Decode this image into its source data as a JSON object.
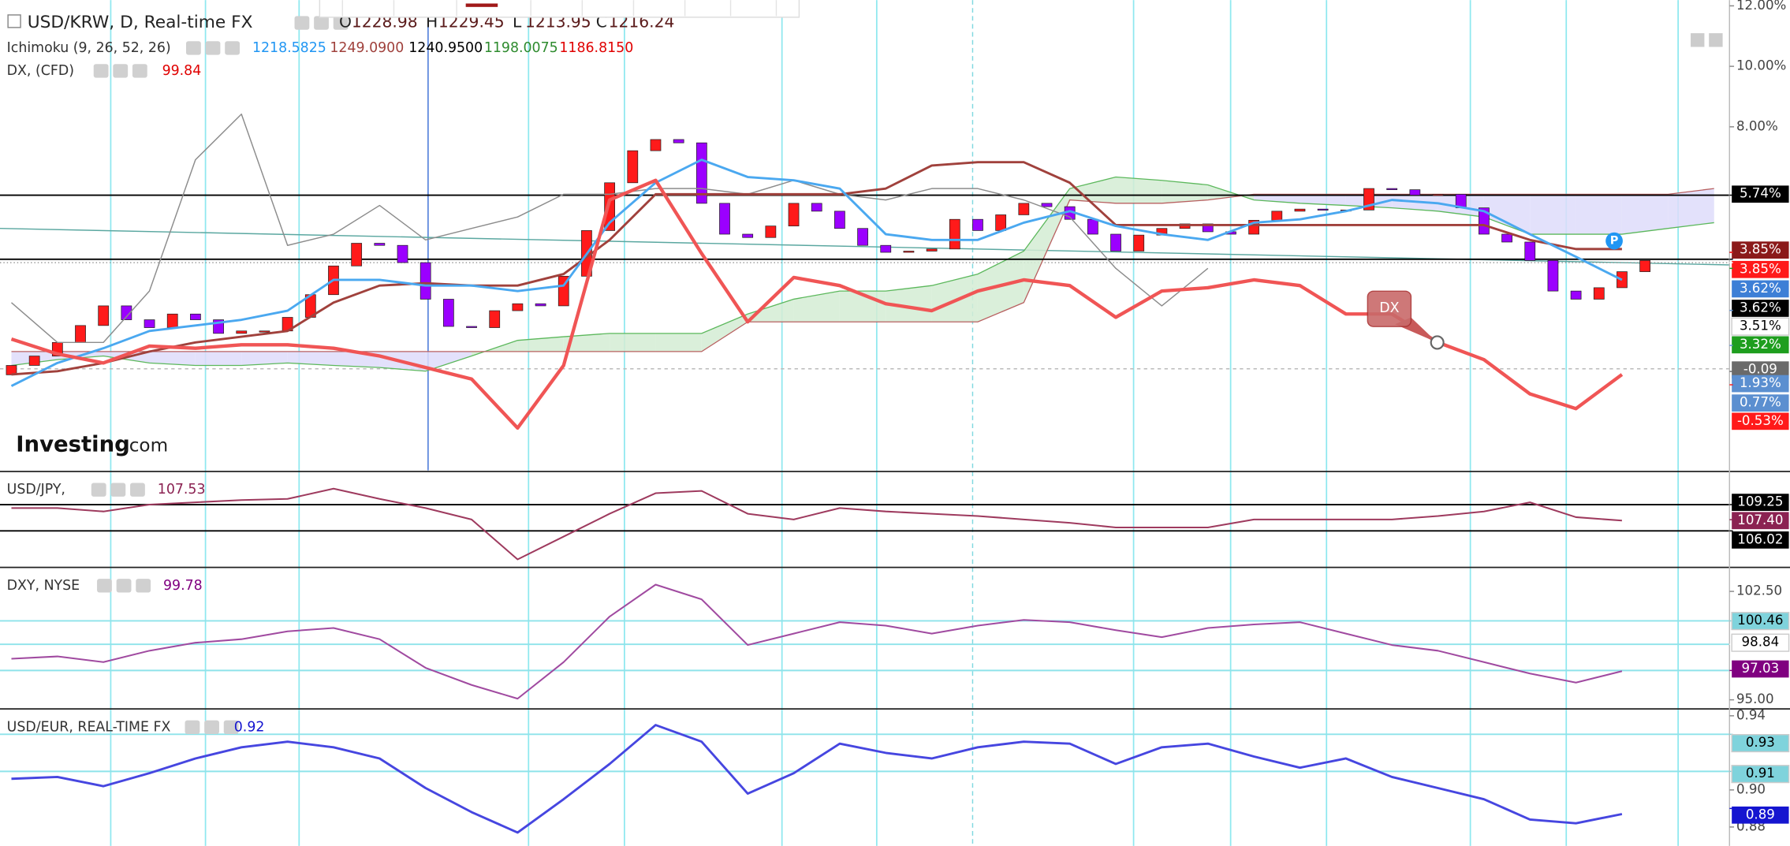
{
  "chart_data": [
    {
      "type": "candlestick",
      "title": "USD/KRW, D, Real-time FX",
      "ohlc": [
        {
          "key": "O",
          "value": 1228.98
        },
        {
          "key": "H",
          "value": 1229.45
        },
        {
          "key": "L",
          "value": 1213.95
        },
        {
          "key": "C",
          "value": 1216.24
        }
      ],
      "indicators": [
        {
          "name": "Ichimoku (9, 26, 52, 26)",
          "values": [
            {
              "value": "1218.5825",
              "color": "#2196f3"
            },
            {
              "value": "1249.0900",
              "color": "#a0413c"
            },
            {
              "value": "1240.9500",
              "color": "#000000"
            },
            {
              "value": "1198.0075",
              "color": "#2e8b2e"
            },
            {
              "value": "1186.8150",
              "color": "#e00000"
            }
          ]
        },
        {
          "name": "DX, (CFD)",
          "values": [
            {
              "value": 99.84,
              "color": "#e00000"
            }
          ]
        }
      ],
      "open": [
        -0.2,
        0.11,
        0.42,
        0.87,
        1.43,
        2.08,
        1.62,
        1.36,
        1.81,
        1.62,
        1.17,
        1.25,
        1.25,
        1.7,
        2.45,
        3.4,
        4.15,
        4.08,
        3.51,
        2.3,
        1.4,
        1.36,
        1.92,
        2.15,
        2.08,
        3.06,
        4.57,
        6.15,
        7.21,
        7.58,
        7.47,
        5.47,
        4.45,
        4.34,
        4.72,
        5.47,
        5.21,
        4.64,
        4.08,
        3.85,
        3.89,
        3.96,
        4.94,
        4.57,
        5.09,
        5.47,
        5.36,
        4.94,
        4.45,
        3.89,
        4.42,
        4.64,
        4.79,
        4.53,
        4.45,
        4.91,
        5.21,
        5.28,
        5.25,
        5.25,
        5.96,
        5.92,
        5.74,
        5.77,
        5.32,
        4.45,
        4.19,
        3.58,
        2.57,
        2.3,
        2.68,
        3.21
      ],
      "close": [
        0.11,
        0.42,
        0.87,
        1.43,
        2.08,
        1.62,
        1.36,
        1.81,
        1.62,
        1.17,
        1.25,
        1.25,
        1.7,
        2.45,
        3.4,
        4.15,
        4.08,
        3.51,
        2.3,
        1.4,
        1.36,
        1.92,
        2.15,
        2.08,
        3.06,
        4.57,
        6.15,
        7.21,
        7.58,
        7.47,
        5.47,
        4.45,
        4.34,
        4.72,
        5.47,
        5.21,
        4.64,
        4.08,
        3.85,
        3.89,
        3.96,
        4.94,
        4.57,
        5.09,
        5.47,
        5.36,
        4.94,
        4.45,
        3.89,
        4.42,
        4.64,
        4.79,
        4.53,
        4.45,
        4.91,
        5.21,
        5.28,
        5.25,
        5.25,
        5.96,
        5.92,
        5.74,
        5.77,
        5.32,
        4.45,
        4.19,
        3.58,
        2.57,
        2.3,
        2.68,
        3.21,
        3.58
      ],
      "up_color": "#ff1a1a",
      "down_color": "#9b00ff",
      "cloud": {
        "span_a": [
          0.11,
          0.3,
          0.42,
          0.19,
          0.11,
          0.11,
          0.19,
          0.11,
          0.04,
          -0.08,
          0.42,
          0.94,
          1.06,
          1.17,
          1.17,
          1.17,
          1.81,
          2.3,
          2.57,
          2.57,
          2.75,
          3.13,
          3.89,
          5.96,
          6.34,
          6.23,
          6.08,
          5.58,
          5.47,
          5.4,
          5.32,
          5.21,
          5.02,
          4.45,
          4.45,
          4.45,
          4.64,
          4.83
        ],
        "span_b": [
          0.57,
          0.57,
          0.57,
          0.57,
          0.57,
          0.57,
          0.57,
          0.57,
          0.57,
          0.57,
          0.57,
          0.57,
          0.57,
          0.57,
          0.57,
          0.57,
          1.55,
          1.55,
          1.55,
          1.55,
          1.55,
          1.55,
          2.19,
          5.58,
          5.47,
          5.47,
          5.58,
          5.77,
          5.77,
          5.77,
          5.77,
          5.77,
          5.77,
          5.77,
          5.77,
          5.77,
          5.77,
          5.96
        ],
        "a_color": "#5cb85c",
        "b_color": "#b86060",
        "bull_fill": "#d3ecd3",
        "bear_fill": "#dedcfa"
      },
      "series": [
        {
          "color": "#8c8c8c",
          "width": 1,
          "values": [
            2.19,
            0.87,
            0.87,
            2.57,
            6.91,
            8.42,
            4.08,
            4.45,
            5.4,
            4.26,
            4.64,
            5.02,
            5.77,
            5.77,
            5.96,
            5.96,
            5.77,
            6.23,
            5.77,
            5.58,
            5.96,
            5.96,
            5.58,
            5.02,
            3.32,
            2.08,
            3.32,
            null,
            null,
            null,
            null,
            null,
            null,
            null,
            null,
            null
          ]
        },
        {
          "color": "#a0413c",
          "width": 2,
          "values": [
            -0.19,
            -0.08,
            0.19,
            0.57,
            0.87,
            1.06,
            1.25,
            2.19,
            2.75,
            2.83,
            2.75,
            2.75,
            3.13,
            4.26,
            5.77,
            5.77,
            5.77,
            5.77,
            5.77,
            5.96,
            6.72,
            6.83,
            6.83,
            6.15,
            4.75,
            4.75,
            4.75,
            4.75,
            4.75,
            4.75,
            4.75,
            4.75,
            4.75,
            4.26,
            3.96,
            3.96
          ]
        },
        {
          "color": "#4aa8f0",
          "width": 2,
          "values": [
            -0.57,
            0.19,
            0.68,
            1.25,
            1.43,
            1.62,
            1.92,
            2.94,
            2.94,
            2.75,
            2.75,
            2.57,
            2.75,
            4.83,
            6.15,
            6.91,
            6.34,
            6.23,
            5.96,
            4.45,
            4.26,
            4.26,
            4.83,
            5.21,
            4.72,
            4.45,
            4.26,
            4.83,
            4.94,
            5.21,
            5.58,
            5.47,
            5.21,
            4.45,
            3.7,
            2.94
          ]
        },
        {
          "color": "#f05555",
          "width": 3,
          "values": [
            0.98,
            0.49,
            0.19,
            0.75,
            0.68,
            0.79,
            0.79,
            0.68,
            0.42,
            0.04,
            -0.34,
            -1.96,
            0.11,
            5.58,
            6.23,
            3.81,
            1.55,
            3.02,
            2.75,
            2.15,
            1.92,
            2.57,
            2.94,
            2.75,
            1.7,
            2.57,
            2.68,
            2.94,
            2.75,
            1.81,
            1.81,
            0.87,
            0.3,
            -0.83,
            -1.32,
            -0.19
          ]
        }
      ],
      "hlines": [
        5.74,
        3.62
      ],
      "hline_color": "#000000",
      "price_labels": [
        {
          "value": 5.74,
          "label": "5.74%",
          "color": "#000000"
        },
        {
          "value": 3.85,
          "label": "3.85%",
          "color": "#8b1a1a"
        },
        {
          "value": 3.85,
          "label": "3.85%",
          "color": "#ff1a1a"
        },
        {
          "value": 3.62,
          "label": "3.62%",
          "color": "#3d7fd6"
        },
        {
          "value": 3.62,
          "label": "3.62%",
          "color": "#000000"
        },
        {
          "value": 3.51,
          "label": "3.51%",
          "color": "#ffffff"
        },
        {
          "value": 3.32,
          "label": "3.32%",
          "color": "#1e9e1e"
        },
        {
          "value": -0.09,
          "color": "#6a6a6a"
        },
        {
          "value": 1.93,
          "label": "1.93%",
          "color": "#5b8fd0"
        },
        {
          "value": 0.77,
          "label": "0.77%",
          "color": "#5b8fd0"
        },
        {
          "value": -0.53,
          "label": "-0.53%",
          "color": "#ff1a1a"
        }
      ],
      "ylim": [
        -3.36,
        12.19
      ],
      "yticks": [
        {
          "value": 12,
          "label": "12.00%"
        },
        {
          "value": 10,
          "label": "10.00%"
        },
        {
          "value": 8,
          "label": "8.00%"
        }
      ],
      "annotations": [
        "DX",
        "P"
      ],
      "watermark": [
        "Investing",
        ".com"
      ]
    },
    {
      "type": "line",
      "title": "USD/JPY,",
      "value": 107.53,
      "value_color": "#8b2252",
      "color": "#9e3a5e",
      "values": [
        108.83,
        108.83,
        108.41,
        109.25,
        109.53,
        109.81,
        109.95,
        111.22,
        109.95,
        108.83,
        107.42,
        102.51,
        105.32,
        108.13,
        110.65,
        110.94,
        108.13,
        107.42,
        108.83,
        108.41,
        108.13,
        107.85,
        107.42,
        107.0,
        106.44,
        106.44,
        106.44,
        107.42,
        107.42,
        107.42,
        107.42,
        107.85,
        108.41,
        109.53,
        107.71,
        107.28
      ],
      "ylim": [
        101.53,
        113.32
      ],
      "hlines": [
        109.25,
        106.02
      ],
      "hline_color": "#000000",
      "price_labels": [
        {
          "value": 109.25,
          "color": "#000000"
        },
        {
          "value": 107.4,
          "label": "107.40",
          "color": "#8b2252"
        },
        {
          "value": 106.02,
          "color": "#000000"
        }
      ]
    },
    {
      "type": "line",
      "title": "DXY, NYSE",
      "value": 99.78,
      "value_color": "#800080",
      "color": "#a04aa0",
      "values": [
        97.84,
        98.0,
        97.61,
        98.4,
        98.95,
        99.19,
        99.74,
        99.97,
        99.19,
        97.21,
        96.03,
        95.08,
        97.61,
        100.76,
        102.97,
        101.95,
        98.79,
        99.58,
        100.37,
        100.13,
        99.58,
        100.13,
        100.53,
        100.37,
        99.82,
        99.34,
        99.97,
        100.21,
        100.37,
        99.58,
        98.79,
        98.4,
        97.61,
        96.82,
        96.19,
        96.98
      ],
      "ylim": [
        94.37,
        104.16
      ],
      "yticks": [
        {
          "value": 102.5,
          "label": "102.50"
        },
        {
          "value": 95,
          "label": "95.00"
        }
      ],
      "hlines": [
        100.46,
        98.84,
        97.03
      ],
      "hline_color": "#8ee3ea",
      "price_labels": [
        {
          "value": 100.46,
          "color": "#7fd3dc"
        },
        {
          "value": 98.84,
          "color": "#ffffff"
        },
        {
          "value": 97.03,
          "color": "#800080"
        }
      ]
    },
    {
      "type": "line",
      "title": "USD/EUR, REAL-TIME FX",
      "value": 0.92,
      "value_color": "#1515d0",
      "color": "#4646e0",
      "values": [
        0.906,
        0.907,
        0.902,
        0.909,
        0.917,
        0.923,
        0.926,
        0.923,
        0.917,
        0.901,
        0.888,
        0.877,
        0.895,
        0.914,
        0.935,
        0.926,
        0.898,
        0.909,
        0.925,
        0.92,
        0.917,
        0.923,
        0.926,
        0.925,
        0.914,
        0.923,
        0.925,
        0.918,
        0.912,
        0.917,
        0.907,
        0.901,
        0.895,
        0.884,
        0.882,
        0.887
      ],
      "ylim": [
        0.8698,
        0.9437
      ],
      "yticks": [
        0.94,
        {
          "value": 0.9,
          "label": "0.90"
        },
        0.88
      ],
      "hlines": [
        0.93,
        0.91
      ],
      "hline_color": "#8ee3ea",
      "price_labels": [
        {
          "value": 0.93,
          "color": "#7fd3dc"
        },
        {
          "value": 0.91,
          "color": "#7fd3dc"
        },
        {
          "value": 0.89,
          "color": "#1515d0"
        }
      ]
    }
  ]
}
